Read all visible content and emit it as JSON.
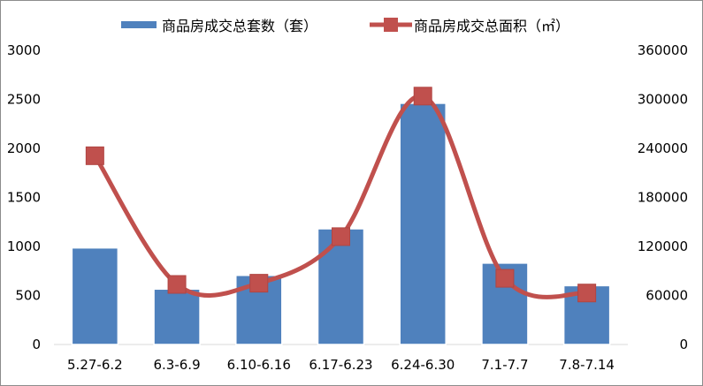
{
  "chart_data": {
    "type": "bar+line",
    "title": "",
    "categories": [
      "5.27-6.2",
      "6.3-6.9",
      "6.10-6.16",
      "6.17-6.23",
      "6.24-6.30",
      "7.1-7.7",
      "7.8-7.14"
    ],
    "series": [
      {
        "name": "商品房成交总套数（套）",
        "type": "bar",
        "axis": "left",
        "color": "#4F81BD",
        "values": [
          985,
          565,
          705,
          1180,
          2460,
          830,
          600
        ]
      },
      {
        "name": "商品房成交总面积（㎡）",
        "type": "line",
        "axis": "right",
        "color": "#C0504D",
        "values": [
          231000,
          73500,
          75000,
          132000,
          304000,
          81000,
          63000
        ]
      }
    ],
    "y_left": {
      "min": 0,
      "max": 3000,
      "ticks": [
        "0",
        "500",
        "1000",
        "1500",
        "2000",
        "2500",
        "3000"
      ]
    },
    "y_right": {
      "min": 0,
      "max": 360000,
      "ticks": [
        "0",
        "60000",
        "120000",
        "180000",
        "240000",
        "300000",
        "360000"
      ]
    },
    "grid": false,
    "legend_position": "top"
  }
}
